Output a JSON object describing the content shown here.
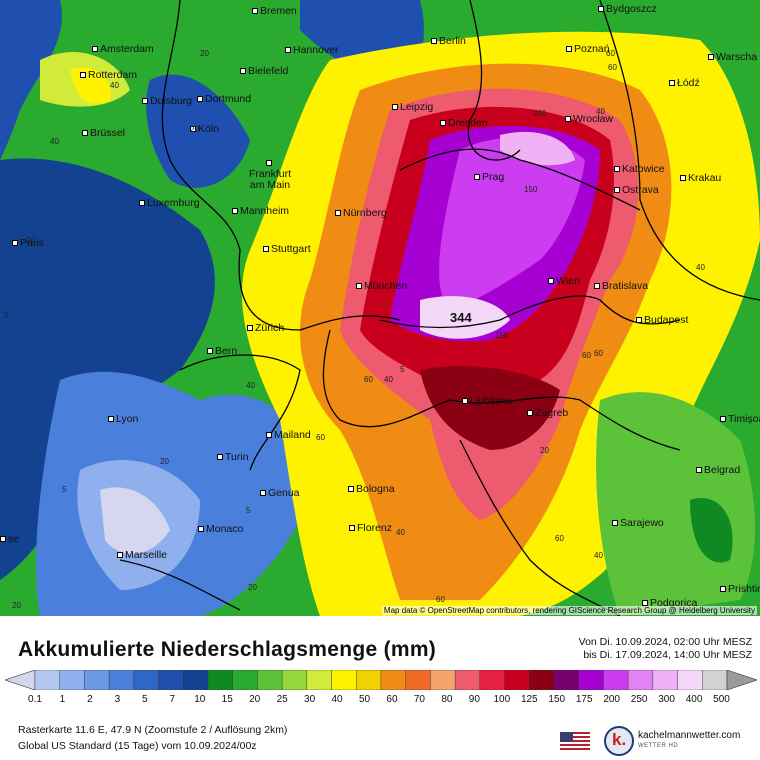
{
  "map": {
    "credit": "Map data © OpenStreetMap contributors, rendering GIScience Research Group @ Heidelberg University",
    "cities": [
      {
        "name": "Bremen"
      },
      {
        "name": "Amsterdam"
      },
      {
        "name": "Rotterdam"
      },
      {
        "name": "Hannover"
      },
      {
        "name": "Berlin"
      },
      {
        "name": "Bydgoszcz"
      },
      {
        "name": "Poznań"
      },
      {
        "name": "Warscha"
      },
      {
        "name": "Bielefeld"
      },
      {
        "name": "Duisburg"
      },
      {
        "name": "Dortmund"
      },
      {
        "name": "Łódź"
      },
      {
        "name": "Leipzig"
      },
      {
        "name": "Brüssel"
      },
      {
        "name": "Köln"
      },
      {
        "name": "Dresden"
      },
      {
        "name": "Wrocław"
      },
      {
        "name": "Frankfurt am Main"
      },
      {
        "name": "Prag"
      },
      {
        "name": "Katowice"
      },
      {
        "name": "Ostrava"
      },
      {
        "name": "Krakau"
      },
      {
        "name": "Luxemburg"
      },
      {
        "name": "Mannheim"
      },
      {
        "name": "Nürnberg"
      },
      {
        "name": "Paris"
      },
      {
        "name": "Stuttgart"
      },
      {
        "name": "Wien"
      },
      {
        "name": "Bratislava"
      },
      {
        "name": "München"
      },
      {
        "name": "Budapest"
      },
      {
        "name": "Zürich"
      },
      {
        "name": "Bern"
      },
      {
        "name": "Ljubljana"
      },
      {
        "name": "Zagreb"
      },
      {
        "name": "Timișoa"
      },
      {
        "name": "Lyon"
      },
      {
        "name": "Mailand"
      },
      {
        "name": "Turin"
      },
      {
        "name": "Belgrad"
      },
      {
        "name": "Genua"
      },
      {
        "name": "Bologna"
      },
      {
        "name": "Sarajewo"
      },
      {
        "name": "Monaco"
      },
      {
        "name": "Florenz"
      },
      {
        "name": "Marseille"
      },
      {
        "name": "Podgorica"
      },
      {
        "name": "Prishtin"
      },
      {
        "name": "se"
      }
    ],
    "contour_labels": [
      "40",
      "20",
      "40",
      "20",
      "20",
      "40",
      "40",
      "60",
      "60",
      "5",
      "20",
      "40",
      "60",
      "200",
      "150",
      "150",
      "60",
      "40",
      "40",
      "20",
      "5",
      "60",
      "40",
      "20",
      "60",
      "60",
      "5",
      "60",
      "5",
      "20"
    ],
    "peak_label": "344"
  },
  "footer": {
    "title": "Akkumulierte Niederschlagsmenge (mm)",
    "period_from": "Von Di. 10.09.2024, 02:00 Uhr MESZ",
    "period_to": "bis Di. 17.09.2024, 14:00 Uhr MESZ",
    "scale": {
      "labels": [
        "0.1",
        "1",
        "2",
        "3",
        "5",
        "7",
        "10",
        "15",
        "20",
        "25",
        "30",
        "40",
        "50",
        "60",
        "70",
        "80",
        "90",
        "100",
        "125",
        "150",
        "175",
        "200",
        "250",
        "300",
        "400",
        "500"
      ],
      "colors": [
        "#d6d6ee",
        "#b3c8f0",
        "#8fb0ec",
        "#6c98e4",
        "#4a80dc",
        "#2f67c9",
        "#1f50b0",
        "#134290",
        "#0f8a22",
        "#2aaa2e",
        "#5cc23a",
        "#94d63c",
        "#d2ea3a",
        "#fff200",
        "#f0d200",
        "#f08c14",
        "#f06a28",
        "#f2a46a",
        "#ee5a6e",
        "#e62244",
        "#c8001e",
        "#8c0014",
        "#78006e",
        "#a600d2",
        "#cc3cf0",
        "#e282f4",
        "#f0b2f4",
        "#f4d8f8",
        "#d2d2d2",
        "#9a9a9a"
      ]
    },
    "info_line1": "Rasterkarte 11.6 E, 47.9 N (Zoomstufe 2 / Auflösung 2km)",
    "info_line2": "Global US Standard (15 Tage) vom  10.09.2024/00z",
    "brand_name": "kachelmannwetter.com",
    "brand_sub": "WETTER HD",
    "brand_logo_letter": "k."
  }
}
